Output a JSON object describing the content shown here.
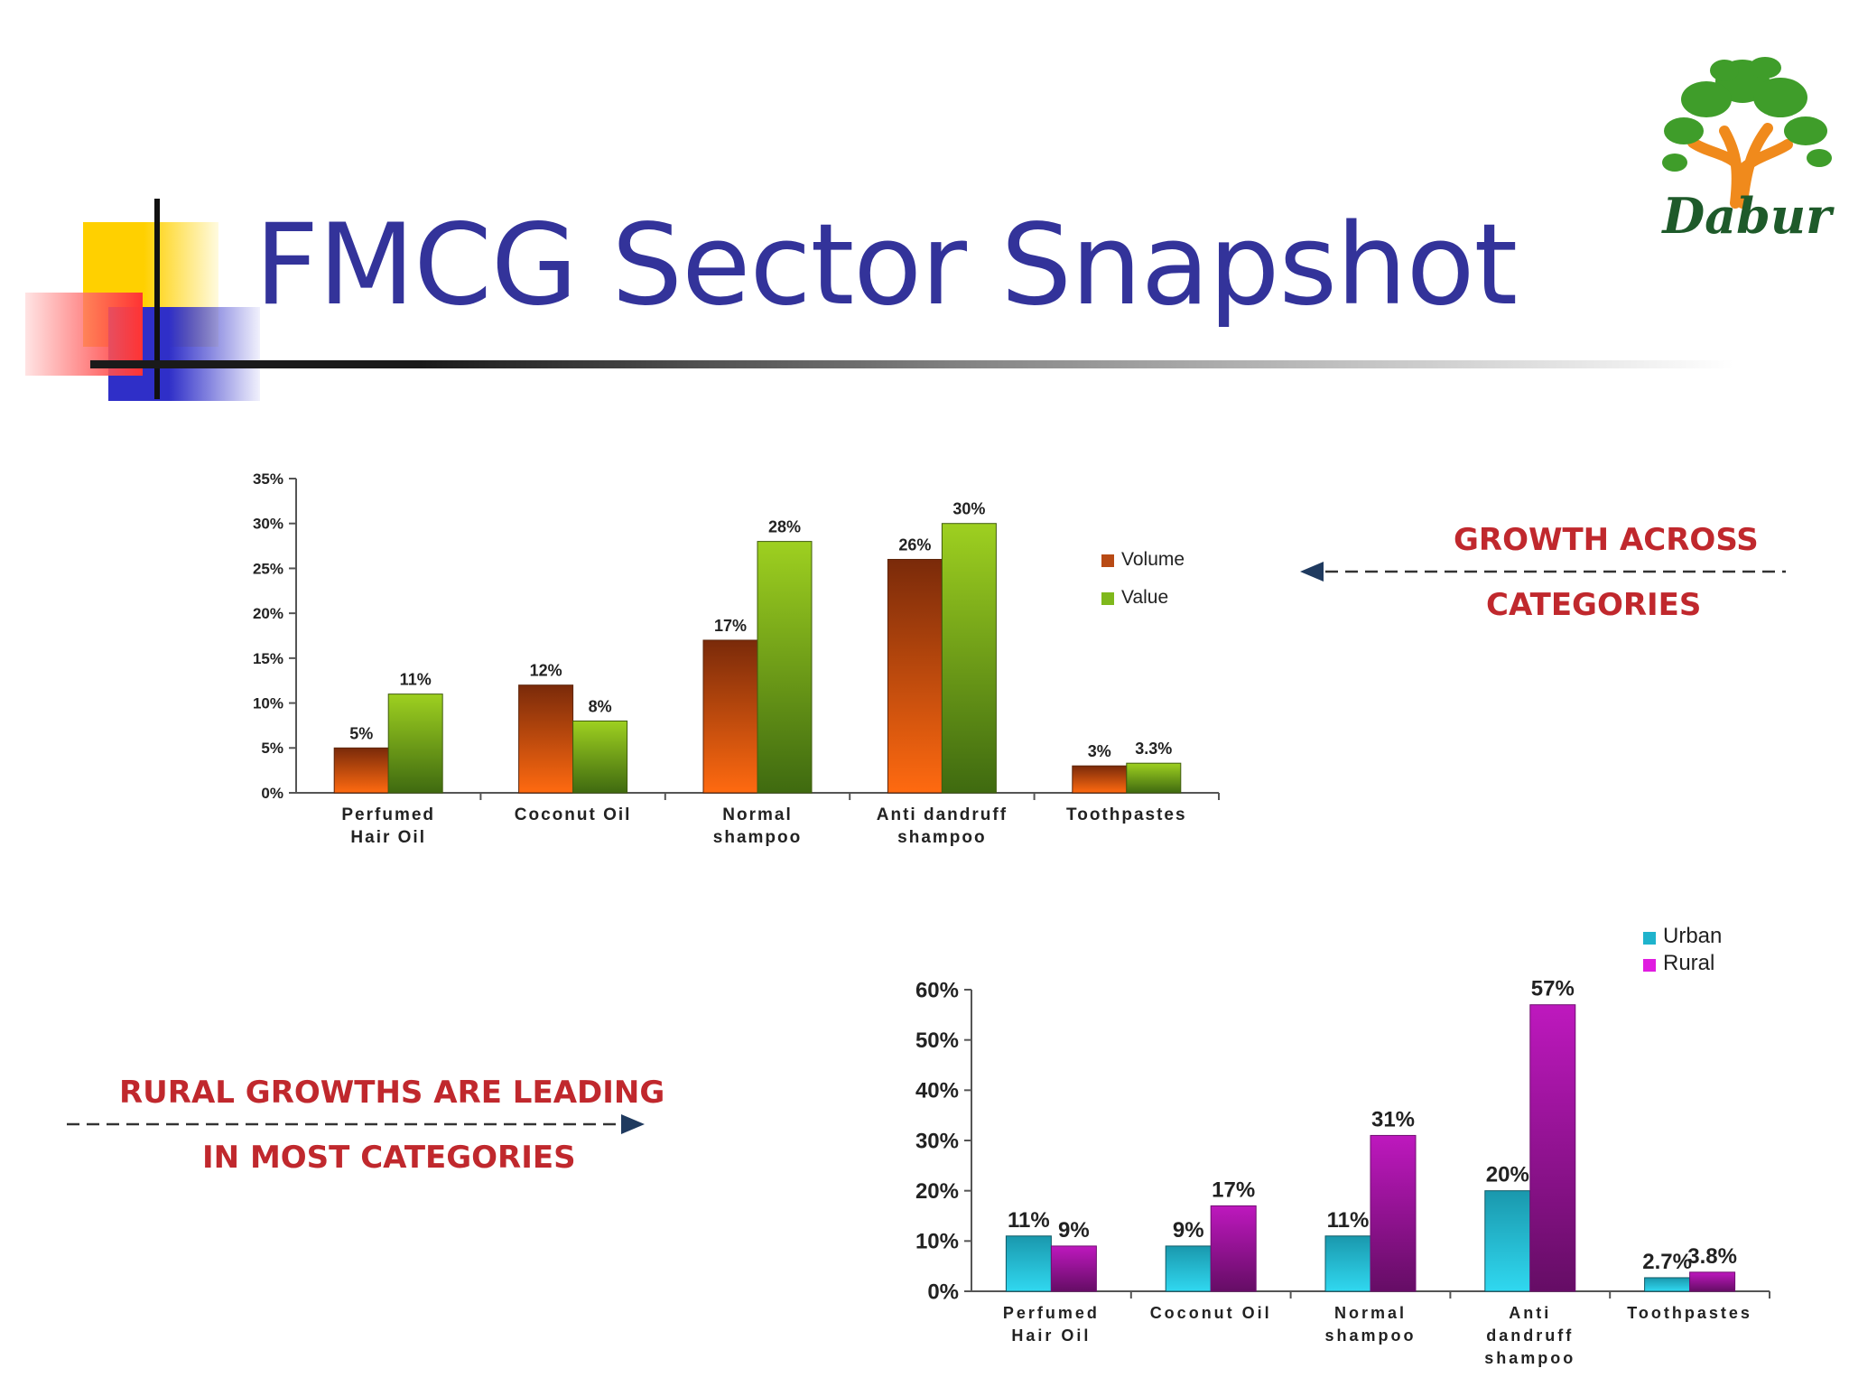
{
  "slide": {
    "title": "FMCG Sector Snapshot",
    "logo_text": "Dabur",
    "callout_top": [
      "GROWTH ACROSS",
      "CATEGORIES"
    ],
    "callout_bottom": [
      "RURAL GROWTHS ARE LEADING",
      "IN MOST CATEGORIES"
    ]
  },
  "chart_data": [
    {
      "type": "bar",
      "categories": [
        [
          "Perfumed",
          "Hair Oil"
        ],
        [
          "Coconut Oil"
        ],
        [
          "Normal",
          "shampoo"
        ],
        [
          "Anti dandruff",
          "shampoo"
        ],
        [
          "Toothpastes"
        ]
      ],
      "series": [
        {
          "name": "Volume",
          "values": [
            5,
            12,
            17,
            26,
            3
          ],
          "labels": [
            "5%",
            "12%",
            "17%",
            "26%",
            "3%"
          ],
          "color": "#b84a14"
        },
        {
          "name": "Value",
          "values": [
            11,
            8,
            28,
            30,
            3.3
          ],
          "labels": [
            "11%",
            "8%",
            "28%",
            "30%",
            "3.3%"
          ],
          "color": "#7fb81c"
        }
      ],
      "yticks": [
        "0%",
        "5%",
        "10%",
        "15%",
        "20%",
        "25%",
        "30%",
        "35%"
      ],
      "ylim": [
        0,
        35
      ],
      "legend_position": "right"
    },
    {
      "type": "bar",
      "categories": [
        [
          "Perfumed",
          "Hair Oil"
        ],
        [
          "Coconut Oil"
        ],
        [
          "Normal",
          "shampoo"
        ],
        [
          "Anti",
          "dandruff",
          "shampoo"
        ],
        [
          "Toothpastes"
        ]
      ],
      "series": [
        {
          "name": "Urban",
          "values": [
            11,
            9,
            11,
            20,
            2.7
          ],
          "labels": [
            "11%",
            "9%",
            "11%",
            "20%",
            "2.7%"
          ],
          "color": "#1fb3cc"
        },
        {
          "name": "Rural",
          "values": [
            9,
            17,
            31,
            57,
            3.8
          ],
          "labels": [
            "9%",
            "17%",
            "31%",
            "57%",
            "3.8%"
          ],
          "color": "#e01ce0"
        }
      ],
      "yticks": [
        "0%",
        "10%",
        "20%",
        "30%",
        "40%",
        "50%",
        "60%"
      ],
      "ylim": [
        0,
        60
      ],
      "legend_position": "top-right"
    }
  ]
}
